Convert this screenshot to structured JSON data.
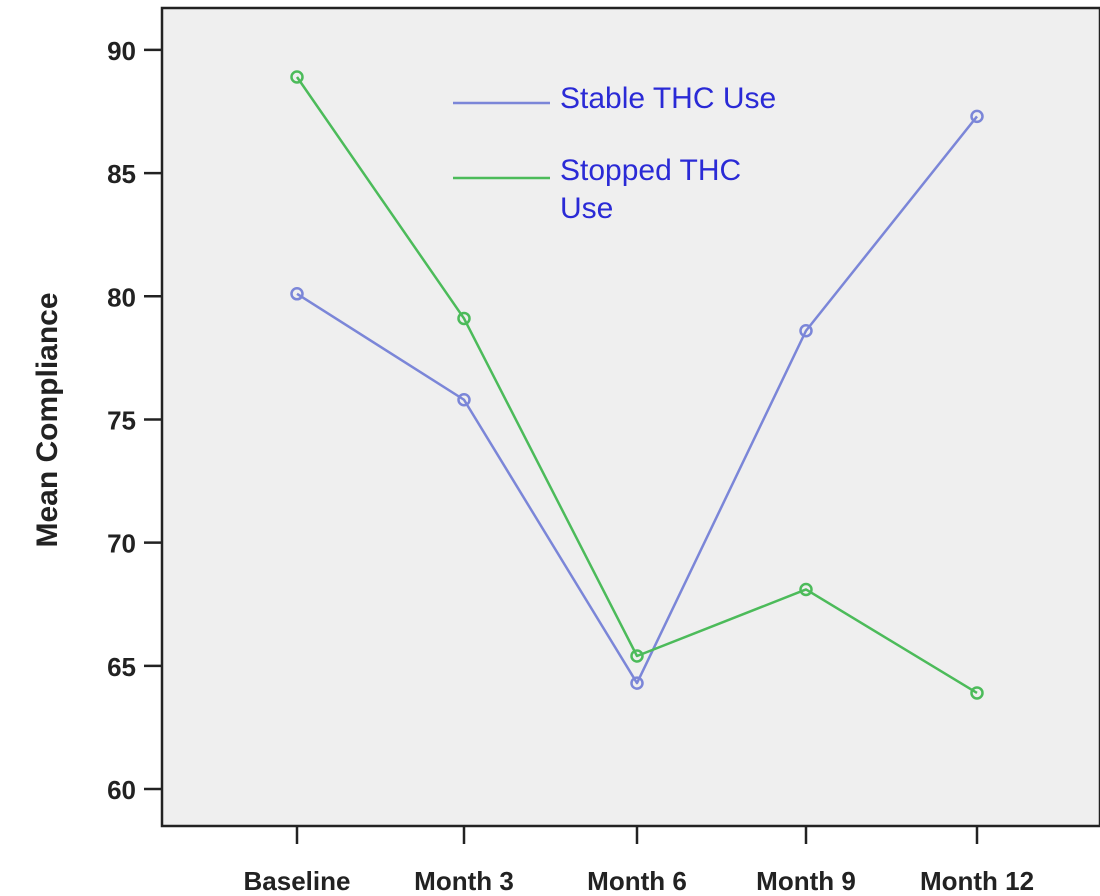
{
  "chart_data": {
    "type": "line",
    "categories": [
      "Baseline",
      "Month 3",
      "Month 6",
      "Month 9",
      "Month 12"
    ],
    "series": [
      {
        "name": "Stable THC Use",
        "values": [
          80.1,
          75.8,
          64.3,
          78.6,
          87.3
        ],
        "color": "#7b86d8"
      },
      {
        "name": "Stopped THC Use",
        "values": [
          88.9,
          79.1,
          65.4,
          68.1,
          63.9
        ],
        "color": "#4cbb5a"
      }
    ],
    "ylabel": "Mean Compliance",
    "xlabel": "",
    "ylim": [
      58.5,
      91.7
    ],
    "yticks": [
      60,
      65,
      70,
      75,
      80,
      85,
      90
    ],
    "grid": false,
    "legend": "top-center",
    "legend_text_color": "#2a2ad6",
    "plot_background": "#efefef",
    "series_labels": [
      {
        "lines": [
          "Stable THC Use"
        ]
      },
      {
        "lines": [
          "Stopped THC",
          "Use"
        ]
      }
    ]
  }
}
